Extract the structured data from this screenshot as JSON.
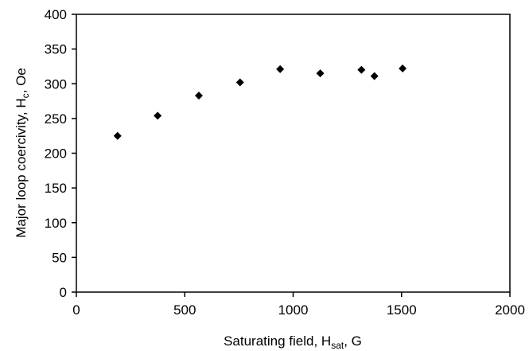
{
  "chart_data": {
    "type": "scatter",
    "title": "",
    "xlabel": {
      "main": "Saturating field, H",
      "sub": "sat",
      "tail": ", G"
    },
    "ylabel": {
      "main": "Major loop coercivity, H",
      "sub": "c",
      "tail": ", Oe"
    },
    "xlim": [
      0,
      2000
    ],
    "ylim": [
      0,
      400
    ],
    "xticks": [
      0,
      500,
      1000,
      1500,
      2000
    ],
    "yticks": [
      0,
      50,
      100,
      150,
      200,
      250,
      300,
      350,
      400
    ],
    "grid": false,
    "marker": "diamond",
    "marker_color": "#000000",
    "series": [
      {
        "x": [
          190,
          375,
          565,
          755,
          940,
          1125,
          1315,
          1375,
          1505
        ],
        "y": [
          225,
          254,
          283,
          302,
          321,
          315,
          320,
          311,
          322
        ]
      }
    ]
  }
}
